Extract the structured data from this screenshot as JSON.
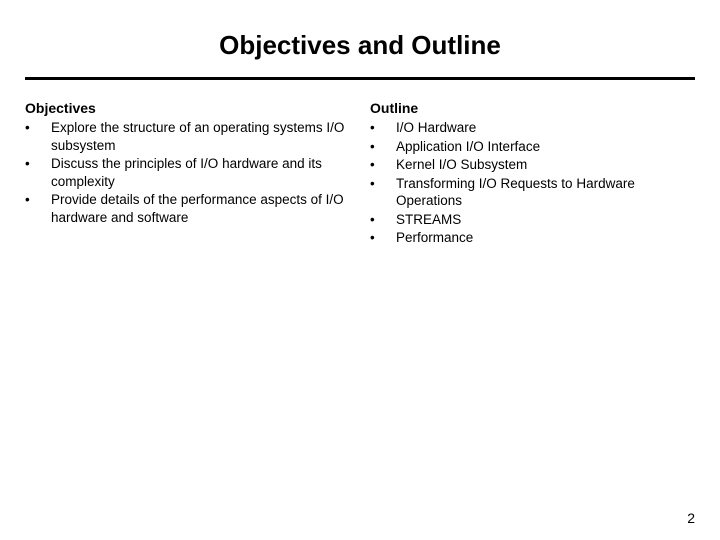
{
  "title": "Objectives and Outline",
  "left": {
    "heading": "Objectives",
    "items": [
      "Explore the structure of an operating systems I/O subsystem",
      "Discuss the principles of I/O hardware and its complexity",
      "Provide details of the performance aspects of I/O hardware and software"
    ]
  },
  "right": {
    "heading": "Outline",
    "items": [
      "I/O Hardware",
      "Application I/O Interface",
      "Kernel I/O Subsystem",
      "Transforming I/O Requests to Hardware Operations",
      "STREAMS",
      "Performance"
    ]
  },
  "bullet": "•",
  "pageNumber": "2",
  "colors": {
    "background": "#ffffff",
    "text": "#000000",
    "divider": "#000000"
  },
  "typography": {
    "title_fontsize": 26,
    "heading_fontsize": 14,
    "body_fontsize": 13.5,
    "page_fontsize": 14
  }
}
